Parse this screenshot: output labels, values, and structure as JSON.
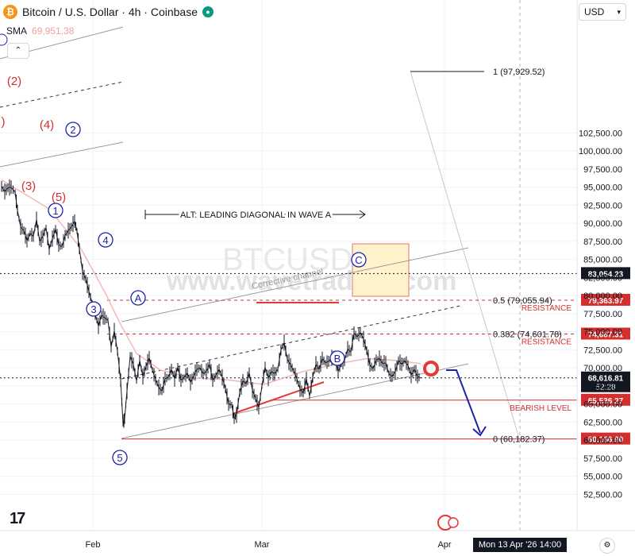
{
  "header": {
    "title": "Bitcoin / U.S. Dollar · 4h · Coinbase",
    "sma_label": "SMA",
    "sma_value": "69,951.38",
    "currency": "USD",
    "bottom_time": "Mon 13 Apr '26   14:00",
    "logo_text": "17",
    "watermark_symbol": "BTCUSD",
    "watermark_site": "www.wavetraders.com",
    "colors": {
      "up": "#131722",
      "sma": "#f2b8b8",
      "resistance": "#d32f2f",
      "projection": "#1e22aa",
      "channel": "#8a8a8a",
      "box": "#fff3cc"
    }
  },
  "chart_data": {
    "type": "line",
    "title": "Bitcoin / U.S. Dollar · 4h · Coinbase",
    "xlabel": "",
    "ylabel": "",
    "ylim": [
      50000,
      104000
    ],
    "x_ticks": [
      "Feb",
      "Mar",
      "Apr"
    ],
    "y_ticks": [
      52500,
      55000,
      57500,
      60000,
      62500,
      65000,
      67500,
      70000,
      72500,
      75000,
      77500,
      80000,
      82500,
      85000,
      87500,
      90000,
      92500,
      95000,
      97500,
      100000,
      102500
    ],
    "y_tick_labels": [
      "52,500.00",
      "55,000.00",
      "57,500.00",
      "60,000.00",
      "62,500.00",
      "65,000.00",
      "67,500.00",
      "70,000.00",
      "72,500.00",
      "75,000.00",
      "77,500.00",
      "80,000.00",
      "82,500.00",
      "85,000.00",
      "87,500.00",
      "90,000.00",
      "92,500.00",
      "95,000.00",
      "97,500.00",
      "100,000.00",
      "102,500.00"
    ],
    "price_path": [
      [
        0,
        95100
      ],
      [
        4,
        94400
      ],
      [
        8,
        94900
      ],
      [
        12,
        95000
      ],
      [
        17,
        94300
      ],
      [
        20,
        91800
      ],
      [
        24,
        89500
      ],
      [
        28,
        89000
      ],
      [
        32,
        87600
      ],
      [
        36,
        88600
      ],
      [
        40,
        88200
      ],
      [
        44,
        90500
      ],
      [
        48,
        87500
      ],
      [
        52,
        88200
      ],
      [
        56,
        89400
      ],
      [
        60,
        86400
      ],
      [
        64,
        87900
      ],
      [
        68,
        89200
      ],
      [
        72,
        87000
      ],
      [
        76,
        86800
      ],
      [
        80,
        88300
      ],
      [
        84,
        89000
      ],
      [
        88,
        89500
      ],
      [
        92,
        90300
      ],
      [
        95,
        88900
      ],
      [
        98,
        86500
      ],
      [
        102,
        83300
      ],
      [
        106,
        82300
      ],
      [
        110,
        80600
      ],
      [
        114,
        79000
      ],
      [
        118,
        77400
      ],
      [
        122,
        75800
      ],
      [
        126,
        77300
      ],
      [
        130,
        76900
      ],
      [
        134,
        76600
      ],
      [
        138,
        72900
      ],
      [
        142,
        75100
      ],
      [
        146,
        72300
      ],
      [
        150,
        68300
      ],
      [
        153,
        62300
      ],
      [
        155,
        63000
      ],
      [
        158,
        66800
      ],
      [
        162,
        71600
      ],
      [
        166,
        70500
      ],
      [
        170,
        68200
      ],
      [
        174,
        71000
      ],
      [
        178,
        68800
      ],
      [
        182,
        70200
      ],
      [
        186,
        71400
      ],
      [
        190,
        69700
      ],
      [
        194,
        68400
      ],
      [
        198,
        67300
      ],
      [
        202,
        66800
      ],
      [
        206,
        68500
      ],
      [
        210,
        68700
      ],
      [
        214,
        69800
      ],
      [
        218,
        68500
      ],
      [
        222,
        70100
      ],
      [
        226,
        68300
      ],
      [
        230,
        68700
      ],
      [
        234,
        69300
      ],
      [
        238,
        68000
      ],
      [
        242,
        68900
      ],
      [
        246,
        69800
      ],
      [
        250,
        70000
      ],
      [
        254,
        69200
      ],
      [
        258,
        69500
      ],
      [
        262,
        70500
      ],
      [
        266,
        68300
      ],
      [
        270,
        69000
      ],
      [
        274,
        69800
      ],
      [
        278,
        68700
      ],
      [
        282,
        67100
      ],
      [
        286,
        65000
      ],
      [
        290,
        64900
      ],
      [
        293,
        63000
      ],
      [
        296,
        63500
      ],
      [
        300,
        66600
      ],
      [
        304,
        68200
      ],
      [
        308,
        67800
      ],
      [
        312,
        69300
      ],
      [
        316,
        66900
      ],
      [
        320,
        65800
      ],
      [
        324,
        64500
      ],
      [
        328,
        67500
      ],
      [
        332,
        70100
      ],
      [
        336,
        68600
      ],
      [
        340,
        69500
      ],
      [
        344,
        69200
      ],
      [
        348,
        69800
      ],
      [
        352,
        72500
      ],
      [
        356,
        73500
      ],
      [
        360,
        71200
      ],
      [
        364,
        70400
      ],
      [
        368,
        69600
      ],
      [
        372,
        68500
      ],
      [
        376,
        67100
      ],
      [
        380,
        66500
      ],
      [
        384,
        68500
      ],
      [
        388,
        66100
      ],
      [
        392,
        68700
      ],
      [
        396,
        70500
      ],
      [
        400,
        69800
      ],
      [
        404,
        71300
      ],
      [
        408,
        70700
      ],
      [
        412,
        70900
      ],
      [
        416,
        71400
      ],
      [
        420,
        71800
      ],
      [
        424,
        69500
      ],
      [
        428,
        70500
      ],
      [
        432,
        71000
      ],
      [
        436,
        72600
      ],
      [
        440,
        72200
      ],
      [
        444,
        74800
      ],
      [
        448,
        74300
      ],
      [
        452,
        74900
      ],
      [
        456,
        74000
      ],
      [
        460,
        72400
      ],
      [
        464,
        70400
      ],
      [
        468,
        69900
      ],
      [
        472,
        71100
      ],
      [
        476,
        71300
      ],
      [
        480,
        70600
      ],
      [
        484,
        70700
      ],
      [
        488,
        69200
      ],
      [
        492,
        68800
      ],
      [
        496,
        69500
      ],
      [
        500,
        71000
      ],
      [
        504,
        70500
      ],
      [
        508,
        71000
      ],
      [
        512,
        70300
      ],
      [
        516,
        69000
      ],
      [
        520,
        69800
      ],
      [
        524,
        68800
      ],
      [
        528,
        68600
      ]
    ],
    "sma_path": [
      [
        0,
        96000
      ],
      [
        60,
        92000
      ],
      [
        100,
        86500
      ],
      [
        130,
        80500
      ],
      [
        150,
        76000
      ],
      [
        170,
        72000
      ],
      [
        200,
        69700
      ],
      [
        240,
        68600
      ],
      [
        280,
        68400
      ],
      [
        310,
        68000
      ],
      [
        330,
        67700
      ],
      [
        350,
        68400
      ],
      [
        380,
        69500
      ],
      [
        420,
        70500
      ],
      [
        460,
        71300
      ],
      [
        500,
        71000
      ],
      [
        528,
        70600
      ]
    ],
    "levels": [
      {
        "price": 83054.23,
        "label": "83,054.23",
        "style": "dotted",
        "color": "#131722"
      },
      {
        "price": 79363.97,
        "label": "79,363.97",
        "style": "dashed",
        "color": "#d32f2f",
        "text": "RESISTANCE",
        "fib": "0.5 (79,055.94)"
      },
      {
        "price": 74687.31,
        "label": "74,687.31",
        "style": "dashed",
        "color": "#d32f2f",
        "text": "RESISTANCE",
        "fib": "0.382 (74,601.78)"
      },
      {
        "price": 68616.81,
        "label": "68,616.81",
        "sublabel": "52:28",
        "style": "dotted",
        "color": "#131722"
      },
      {
        "price": 65536.27,
        "label": "65,536.27",
        "style": "solid",
        "color": "#d32f2f",
        "text": "BEARISH LEVEL"
      },
      {
        "price": 60166.9,
        "label": "60,166.90",
        "style": "solid",
        "color": "#d32f2f",
        "fib": "0 (60,182.37)"
      }
    ],
    "fib_top": "1 (97,929.52)",
    "annotations": {
      "corrective_channel": "Corrective channel",
      "alt_note": "ALT: LEADING DIAGONAL IN WAVE A"
    },
    "red_waves": [
      "(2)",
      "(4)",
      "(3)",
      "(5)",
      ")"
    ],
    "blue_waves": [
      "1",
      "2",
      "3",
      "4",
      "5",
      "A",
      "B",
      "C"
    ]
  }
}
